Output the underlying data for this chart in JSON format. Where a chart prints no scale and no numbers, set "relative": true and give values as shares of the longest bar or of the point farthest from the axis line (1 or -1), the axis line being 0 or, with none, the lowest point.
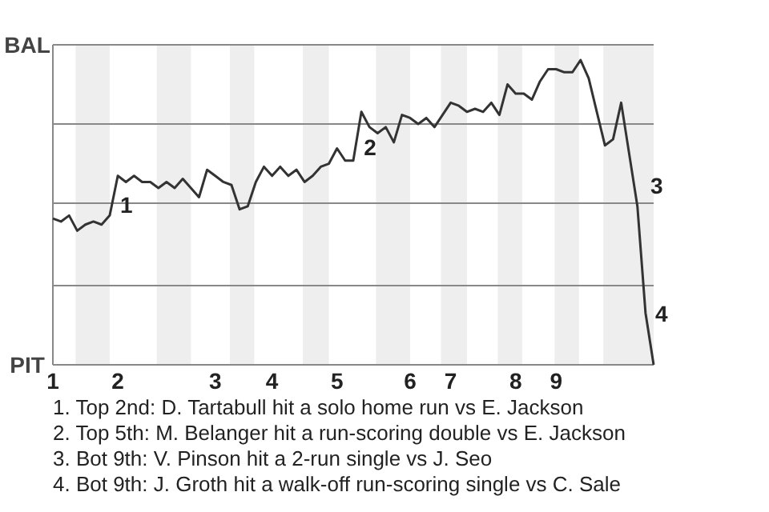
{
  "chart_data": {
    "type": "line",
    "categories": [
      "1",
      null,
      null,
      null,
      null,
      null,
      null,
      null,
      "2",
      null,
      null,
      null,
      null,
      null,
      null,
      null,
      null,
      null,
      null,
      null,
      "3",
      null,
      null,
      null,
      null,
      null,
      null,
      "4",
      null,
      null,
      null,
      null,
      null,
      null,
      null,
      "5",
      null,
      null,
      null,
      null,
      null,
      null,
      null,
      null,
      "6",
      null,
      null,
      null,
      null,
      "7",
      null,
      null,
      null,
      null,
      null,
      null,
      null,
      "8",
      null,
      null,
      null,
      null,
      "9",
      null,
      null,
      null,
      null,
      null,
      null,
      null,
      null,
      null,
      null,
      null,
      null
    ],
    "relative": true,
    "series": [
      {
        "color": "#333333",
        "values": [
          0.48,
          0.47,
          0.49,
          0.44,
          0.46,
          0.47,
          0.46,
          0.49,
          0.62,
          0.6,
          0.62,
          0.6,
          0.6,
          0.58,
          0.6,
          0.58,
          0.61,
          0.58,
          0.55,
          0.64,
          0.62,
          0.6,
          0.59,
          0.51,
          0.52,
          0.6,
          0.65,
          0.62,
          0.65,
          0.62,
          0.64,
          0.6,
          0.62,
          0.65,
          0.66,
          0.71,
          0.67,
          0.67,
          0.83,
          0.78,
          0.76,
          0.78,
          0.73,
          0.82,
          0.81,
          0.79,
          0.81,
          0.78,
          0.82,
          0.86,
          0.85,
          0.83,
          0.84,
          0.83,
          0.86,
          0.82,
          0.92,
          0.89,
          0.89,
          0.87,
          0.93,
          0.97,
          0.97,
          0.96,
          0.96,
          1,
          0.94,
          0.83,
          0.72,
          0.74,
          0.86,
          0.69,
          0.52,
          0.17,
          0
        ],
        "line_style": "solid"
      }
    ],
    "ref_lines": [
      {
        "axis": "y",
        "value": 0,
        "label": "PIT",
        "color": "#888888"
      },
      {
        "axis": "y",
        "value": 0.26,
        "label": null,
        "color": "#888888"
      },
      {
        "axis": "y",
        "value": 0.53,
        "label": null,
        "color": "#888888"
      },
      {
        "axis": "y",
        "value": 0.79,
        "label": null,
        "color": "#888888"
      },
      {
        "axis": "y",
        "value": 1.05,
        "label": "BAL",
        "color": "#888888"
      }
    ],
    "annotations": [
      "1",
      "2",
      "3",
      "4",
      "1. Top 2nd: D. Tartabull hit a solo home run vs E. Jackson",
      "2. Top 5th: M. Belanger hit a run-scoring double vs E. Jackson",
      "3. Bot 9th: V. Pinson hit a 2-run single vs J. Seo",
      "4. Bot 9th: J. Groth hit a walk-off run-scoring single vs C. Sale"
    ]
  }
}
